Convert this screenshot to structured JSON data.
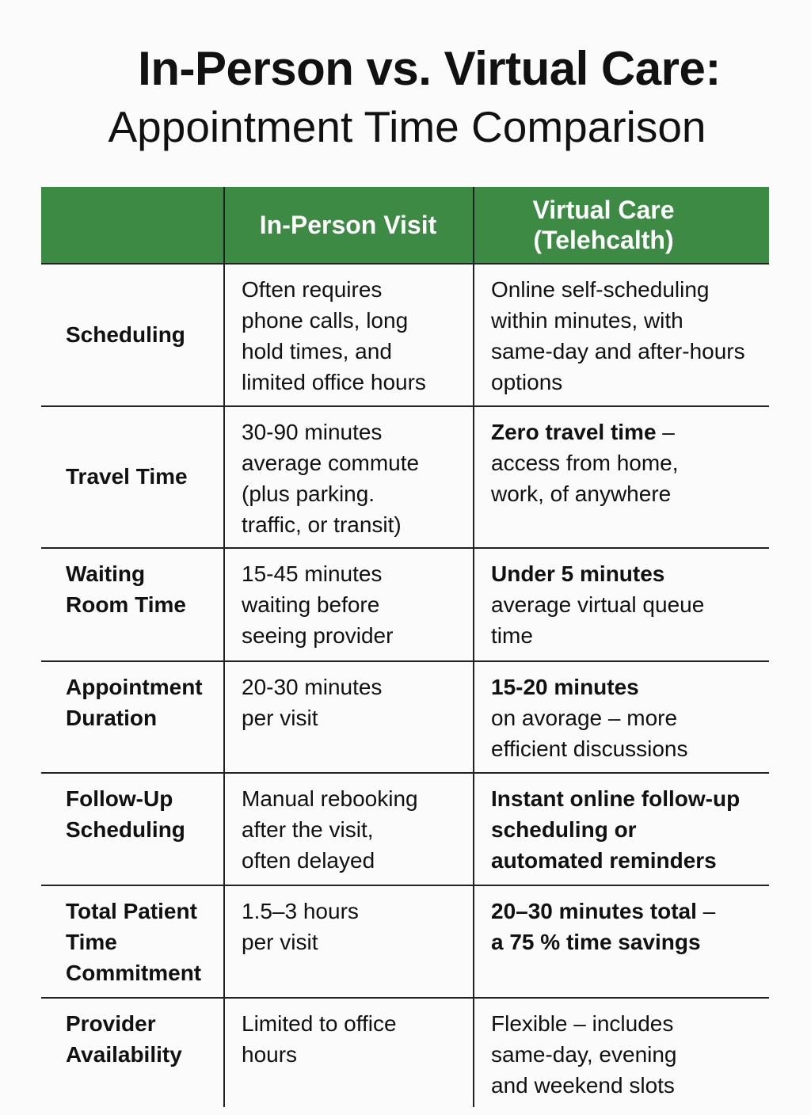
{
  "title": {
    "line1": "In-Person vs. Virtual Care:",
    "line2": "Appointment Time Comparison"
  },
  "colors": {
    "header_bg": "#3d8a45",
    "header_text": "#ffffff"
  },
  "table": {
    "headers": [
      "",
      "In-Person Visit",
      "Virtual Care\n(Telehcalth)"
    ],
    "rows": [
      {
        "label": [
          "Scheduling"
        ],
        "in_person": [
          "Often requires",
          "phone calls, long",
          "hold times, and",
          "limited office hours"
        ],
        "virtual": [
          [
            {
              "t": "Online self-scheduling",
              "b": false
            }
          ],
          [
            {
              "t": "within minutes, with",
              "b": false
            }
          ],
          [
            {
              "t": "same-day and after-hours",
              "b": false
            }
          ],
          [
            {
              "t": "options",
              "b": false
            }
          ]
        ]
      },
      {
        "label": [
          "Travel Time"
        ],
        "in_person": [
          "30-90 minutes",
          "average commute",
          "(plus parking.",
          "traffic, or transit)"
        ],
        "virtual": [
          [
            {
              "t": "Zero travel time",
              "b": true
            },
            {
              "t": " –",
              "b": false
            }
          ],
          [
            {
              "t": "access from home,",
              "b": false
            }
          ],
          [
            {
              "t": "work, of anywhere",
              "b": false
            }
          ]
        ]
      },
      {
        "label": [
          "Waiting",
          "Room Time"
        ],
        "in_person": [
          "15-45 minutes",
          "waiting before",
          "seeing provider"
        ],
        "virtual": [
          [
            {
              "t": "Under 5 minutes",
              "b": true
            }
          ],
          [
            {
              "t": "average virtual queue",
              "b": false
            }
          ],
          [
            {
              "t": "time",
              "b": false
            }
          ]
        ]
      },
      {
        "label": [
          "Appointment",
          "Duration"
        ],
        "in_person": [
          "20-30 minutes",
          "per visit"
        ],
        "virtual": [
          [
            {
              "t": "15-20 minutes",
              "b": true
            }
          ],
          [
            {
              "t": "on avorage – more",
              "b": false
            }
          ],
          [
            {
              "t": "efficient discussions",
              "b": false
            }
          ]
        ]
      },
      {
        "label": [
          "Follow-Up",
          "Scheduling"
        ],
        "in_person": [
          "Manual rebooking",
          "after the visit,",
          "often delayed"
        ],
        "virtual": [
          [
            {
              "t": "Instant online follow-up",
              "b": true
            }
          ],
          [
            {
              "t": "scheduling or",
              "b": true
            }
          ],
          [
            {
              "t": "automated reminders",
              "b": true
            }
          ]
        ]
      },
      {
        "label": [
          "Total Patient",
          "Time",
          "Commitment"
        ],
        "in_person": [
          "1.5–3 hours",
          "per visit"
        ],
        "virtual": [
          [
            {
              "t": "20–30 minutes total",
              "b": true
            },
            {
              "t": " –",
              "b": false
            }
          ],
          [
            {
              "t": "a 75 % time savings",
              "b": true
            }
          ]
        ]
      },
      {
        "label": [
          "Provider",
          "Availability"
        ],
        "in_person": [
          "Limited to office",
          "hours"
        ],
        "virtual": [
          [
            {
              "t": "Flexible – includes",
              "b": false
            }
          ],
          [
            {
              "t": "same-day, evening",
              "b": false
            }
          ],
          [
            {
              "t": "and weekend slots",
              "b": false
            }
          ]
        ]
      }
    ]
  }
}
